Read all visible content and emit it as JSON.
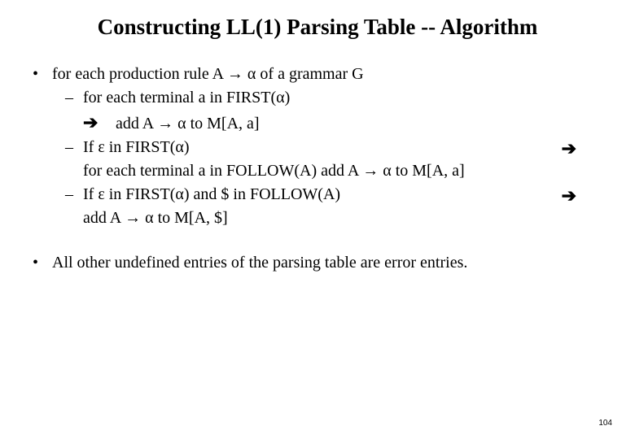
{
  "title": "Constructing LL(1) Parsing Table -- Algorithm",
  "bullet1": {
    "text": "for each production rule A → α  of a grammar G",
    "sub1": {
      "line1": "for each terminal a in FIRST(α)",
      "line2": "add A → α  to M[A, a]",
      "arrow": "➔"
    },
    "sub2": {
      "line1": "If ε in FIRST(α)",
      "line2": "for each terminal a in FOLLOW(A)  add A → α  to M[A, a]",
      "side_arrow": "➔"
    },
    "sub3": {
      "line1": "If ε in FIRST(α) and $ in FOLLOW(A)",
      "line2": "add A → α  to M[A, $]",
      "side_arrow": "➔"
    }
  },
  "bullet2": "All other undefined entries of the parsing table are error entries.",
  "page_number": "104",
  "dash": "–",
  "dot": "•"
}
